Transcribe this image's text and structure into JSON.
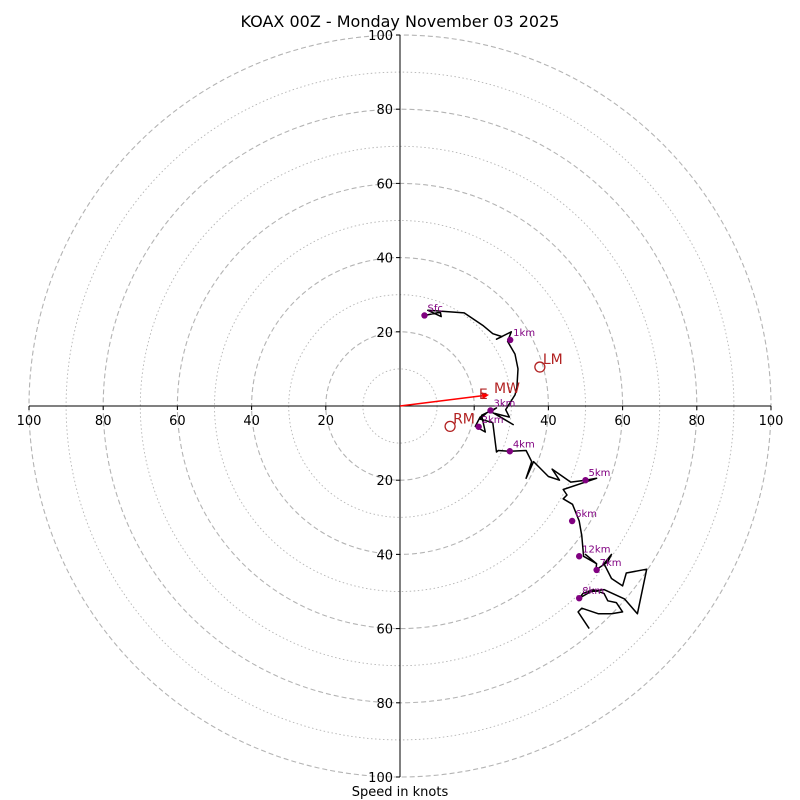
{
  "chart_data": {
    "type": "line",
    "title": "KOAX 00Z - Monday November 03 2025",
    "xlabel": "Speed in knots",
    "unit": "knots",
    "rings": [
      10,
      20,
      30,
      40,
      50,
      60,
      70,
      80,
      90,
      100
    ],
    "xlim": [
      -100,
      100
    ],
    "ylim": [
      -100,
      100
    ],
    "tick_labels": {
      "top": [
        "20",
        "40",
        "60",
        "80",
        "100"
      ],
      "bottom": [
        "20",
        "40",
        "60",
        "80",
        "100"
      ],
      "left": [
        "100",
        "80",
        "60",
        "40",
        "20"
      ],
      "right": [
        "40",
        "60",
        "80",
        "100"
      ]
    },
    "hodograph_line": {
      "color": "#000000",
      "x": [
        6.6,
        10.9,
        11.1,
        7.5,
        17.3,
        22.5,
        25.0,
        27.5,
        26.0,
        30.0,
        29.0,
        31.0,
        31.8,
        31.5,
        31.0,
        28.5,
        29.5,
        25.5,
        30.5,
        24.5,
        26.0,
        22.0,
        23.0,
        20.3,
        21.6,
        23.2,
        21.5,
        25.0,
        26.0,
        26.5,
        29.6,
        34.0,
        35.5,
        34.0,
        36.0,
        40.0,
        43.0,
        41.0,
        46.0,
        50.0,
        53.0,
        44.0,
        45.0,
        44.0,
        46.5,
        48.3,
        49.0,
        49.5,
        53.0,
        50.0,
        53.0,
        52.8,
        56.0,
        57.0,
        55.0,
        57.0,
        60.0,
        61.0,
        66.5,
        64.0,
        60.5,
        55.0,
        51.5,
        48.3,
        49.3,
        52.0,
        55.0,
        56.0,
        58.3,
        60.0,
        57.0,
        53.5,
        49.0,
        48.0,
        51.0
      ],
      "y": [
        24.4,
        25.3,
        24.1,
        25.8,
        25.1,
        21.6,
        19.5,
        18.7,
        18.0,
        20.0,
        17.4,
        14.0,
        10.0,
        5.0,
        3.0,
        -1.0,
        -3.0,
        -2.0,
        -5.0,
        -1.5,
        -0.5,
        -2.5,
        -7.0,
        -5.5,
        -3.0,
        -2.0,
        -3.5,
        -4.5,
        -12.4,
        -12.0,
        -12.2,
        -12.0,
        -15.0,
        -19.5,
        -15.0,
        -19.0,
        -20.0,
        -17.0,
        -20.5,
        -20.0,
        -19.5,
        -22.5,
        -24.0,
        -25.0,
        -26.5,
        -31.0,
        -35.0,
        -40.5,
        -42.5,
        -40.0,
        -42.5,
        -44.2,
        -42.0,
        -40.0,
        -42.5,
        -46.5,
        -48.5,
        -45.0,
        -44.0,
        -56.0,
        -52.0,
        -49.5,
        -50.0,
        -51.8,
        -50.5,
        -49.5,
        -50.5,
        -52.5,
        -53.0,
        -55.5,
        -56.0,
        -56.0,
        -54.5,
        -55.5,
        -60.0
      ]
    },
    "heights": [
      {
        "label": "Sfc",
        "x": 6.6,
        "y": 24.4
      },
      {
        "label": "1km",
        "x": 29.7,
        "y": 17.8
      },
      {
        "label": "2km",
        "x": 21.2,
        "y": -5.6
      },
      {
        "label": "3km",
        "x": 24.4,
        "y": -1.2
      },
      {
        "label": "4km",
        "x": 29.6,
        "y": -12.2
      },
      {
        "label": "5km",
        "x": 50.0,
        "y": -20.0
      },
      {
        "label": "6km",
        "x": 46.4,
        "y": -31.0
      },
      {
        "label": "12km",
        "x": 48.3,
        "y": -40.5
      },
      {
        "label": "7km",
        "x": 53.0,
        "y": -44.2
      },
      {
        "label": "8km",
        "x": 48.3,
        "y": -51.8
      }
    ],
    "mean_wind": {
      "label": "MW",
      "x": 24.0,
      "y": 3.0,
      "color": "#ff0000"
    },
    "storm_motion": [
      {
        "label": "LM",
        "x": 37.7,
        "y": 10.5
      },
      {
        "label": "RM",
        "x": 13.5,
        "y": -5.5
      },
      {
        "label": "E",
        "x": 24.5,
        "y": 3.0
      }
    ]
  }
}
